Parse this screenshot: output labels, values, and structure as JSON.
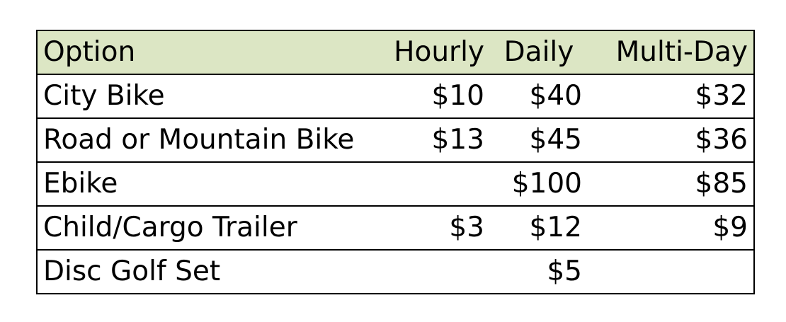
{
  "table": {
    "header_bg": "#dce6c4",
    "columns": {
      "option": "Option",
      "hourly": "Hourly",
      "daily": "Daily",
      "multiday": "Multi-Day"
    },
    "rows": [
      {
        "option": "City Bike",
        "hourly": "$10",
        "daily": "$40",
        "multiday": "$32"
      },
      {
        "option": "Road or Mountain Bike",
        "hourly": "$13",
        "daily": "$45",
        "multiday": "$36"
      },
      {
        "option": "Ebike",
        "hourly": "",
        "daily": "$100",
        "multiday": "$85"
      },
      {
        "option": "Child/Cargo Trailer",
        "hourly": "$3",
        "daily": "$12",
        "multiday": "$9"
      },
      {
        "option": "Disc Golf Set",
        "hourly": "",
        "daily": "$5",
        "multiday": ""
      }
    ]
  }
}
